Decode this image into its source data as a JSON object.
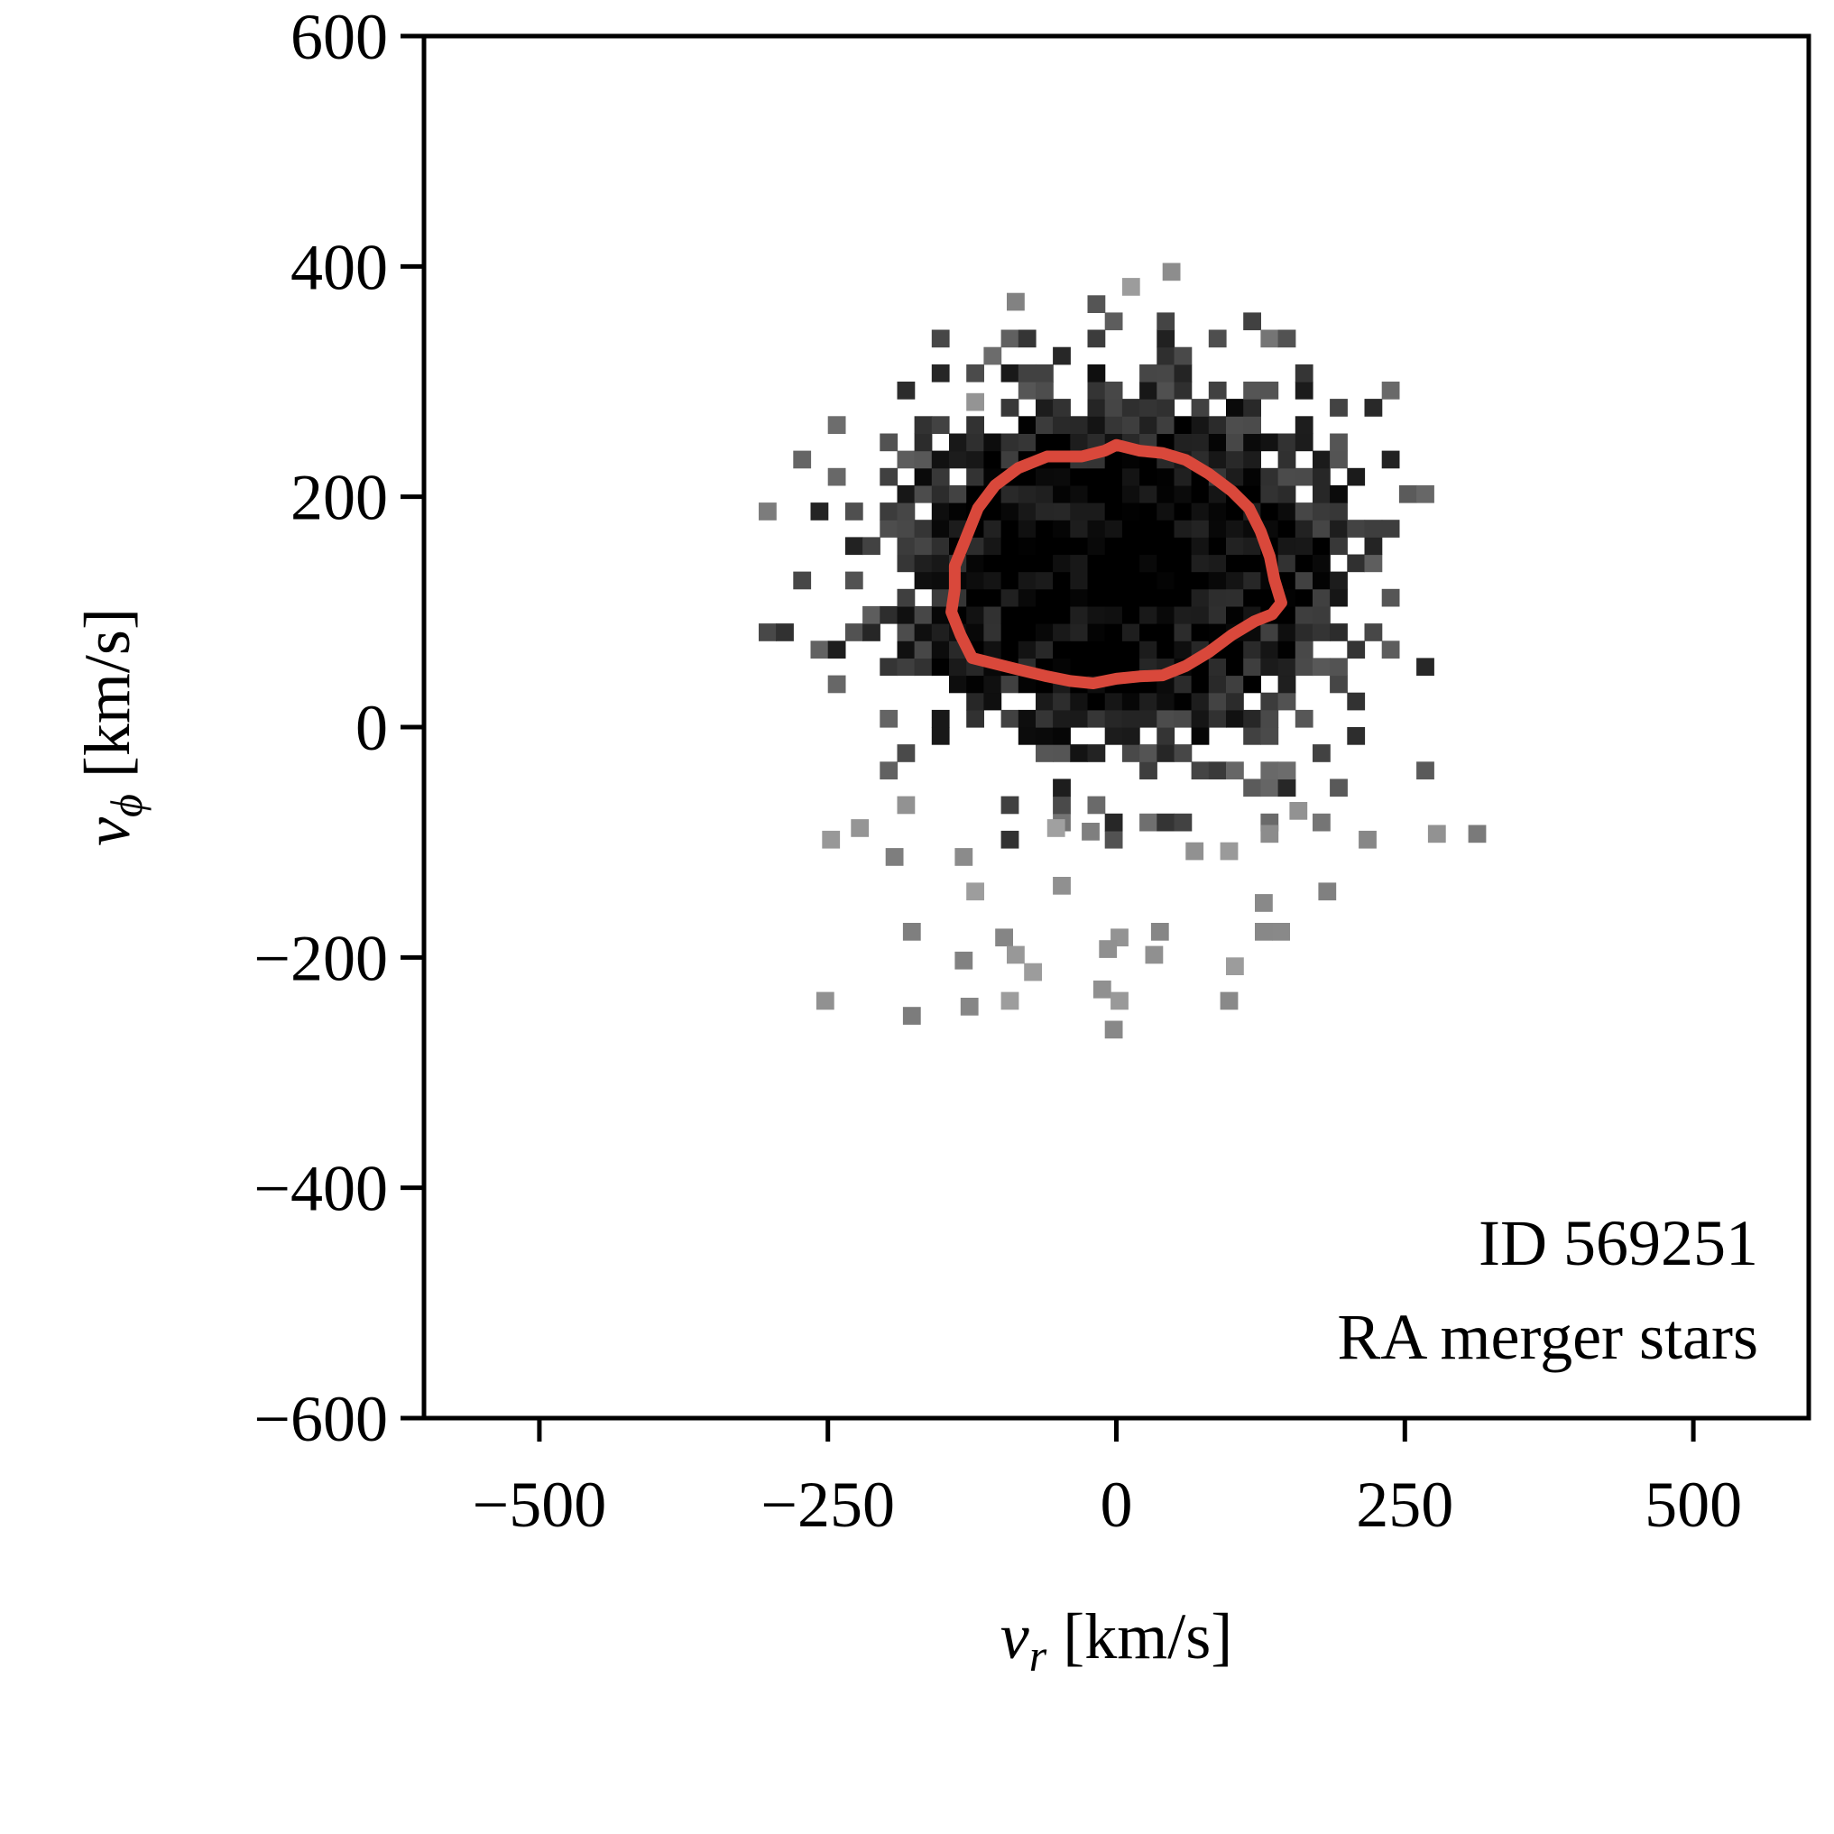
{
  "chart_data": {
    "type": "heatmap",
    "xlabel": {
      "symbol": "v",
      "subscript": "r",
      "unit": " [km/s]"
    },
    "ylabel": {
      "symbol": "v",
      "subscript": "ϕ",
      "unit": " [km/s]"
    },
    "xlim": [
      -600,
      600
    ],
    "ylim": [
      -600,
      600
    ],
    "xticks": [
      -500,
      -250,
      0,
      250,
      500
    ],
    "yticks": [
      -600,
      -400,
      -200,
      0,
      200,
      400,
      600
    ],
    "xtick_labels": [
      "−500",
      "−250",
      "0",
      "250",
      "500"
    ],
    "ytick_labels": [
      "−600",
      "−400",
      "−200",
      "0",
      "200",
      "400",
      "600"
    ],
    "grid": false,
    "colormap": "greys",
    "annotation": [
      "ID 569251",
      "RA merger stars"
    ],
    "annotation_position": "bottom-right",
    "contour_color": "#d9483b",
    "distribution": {
      "center_vr": 0,
      "center_vphi": 140,
      "sigma_vr": 110,
      "sigma_vphi": 85,
      "bin_width": 15,
      "vr_range": [
        -310,
        310
      ],
      "vphi_range": [
        -270,
        390
      ]
    },
    "contour": [
      [
        -140,
        120
      ],
      [
        -140,
        140
      ],
      [
        -130,
        165
      ],
      [
        -120,
        190
      ],
      [
        -105,
        210
      ],
      [
        -85,
        225
      ],
      [
        -60,
        235
      ],
      [
        -30,
        235
      ],
      [
        -10,
        240
      ],
      [
        0,
        245
      ],
      [
        20,
        240
      ],
      [
        40,
        238
      ],
      [
        60,
        232
      ],
      [
        80,
        220
      ],
      [
        100,
        205
      ],
      [
        115,
        190
      ],
      [
        125,
        170
      ],
      [
        133,
        148
      ],
      [
        137,
        128
      ],
      [
        143,
        108
      ],
      [
        135,
        98
      ],
      [
        120,
        92
      ],
      [
        100,
        80
      ],
      [
        80,
        65
      ],
      [
        60,
        53
      ],
      [
        40,
        45
      ],
      [
        20,
        44
      ],
      [
        0,
        42
      ],
      [
        -20,
        38
      ],
      [
        -40,
        40
      ],
      [
        -60,
        44
      ],
      [
        -85,
        50
      ],
      [
        -105,
        55
      ],
      [
        -125,
        60
      ],
      [
        -135,
        80
      ],
      [
        -143,
        100
      ],
      [
        -140,
        120
      ]
    ],
    "outliers": [
      [
        -95,
        362
      ],
      [
        5,
        375
      ],
      [
        40,
        388
      ],
      [
        -130,
        275
      ],
      [
        -60,
        -95
      ],
      [
        -30,
        -98
      ],
      [
        -190,
        -75
      ],
      [
        -230,
        -95
      ],
      [
        -255,
        -105
      ],
      [
        150,
        -80
      ],
      [
        125,
        -100
      ],
      [
        210,
        -105
      ],
      [
        270,
        -100
      ],
      [
        305,
        -100
      ],
      [
        -200,
        -120
      ],
      [
        -140,
        -120
      ],
      [
        -130,
        -150
      ],
      [
        -55,
        -145
      ],
      [
        60,
        -115
      ],
      [
        90,
        -115
      ],
      [
        175,
        -150
      ],
      [
        120,
        -160
      ],
      [
        -185,
        -185
      ],
      [
        -105,
        -190
      ],
      [
        -95,
        -205
      ],
      [
        -80,
        -220
      ],
      [
        -140,
        -210
      ],
      [
        -5,
        -190
      ],
      [
        -15,
        -200
      ],
      [
        30,
        -185
      ],
      [
        120,
        -185
      ],
      [
        135,
        -185
      ],
      [
        95,
        -215
      ],
      [
        25,
        -205
      ],
      [
        -260,
        -245
      ],
      [
        -185,
        -258
      ],
      [
        -135,
        -250
      ],
      [
        -100,
        -245
      ],
      [
        -20,
        -235
      ],
      [
        -5,
        -245
      ],
      [
        -10,
        -270
      ],
      [
        90,
        -245
      ]
    ]
  }
}
